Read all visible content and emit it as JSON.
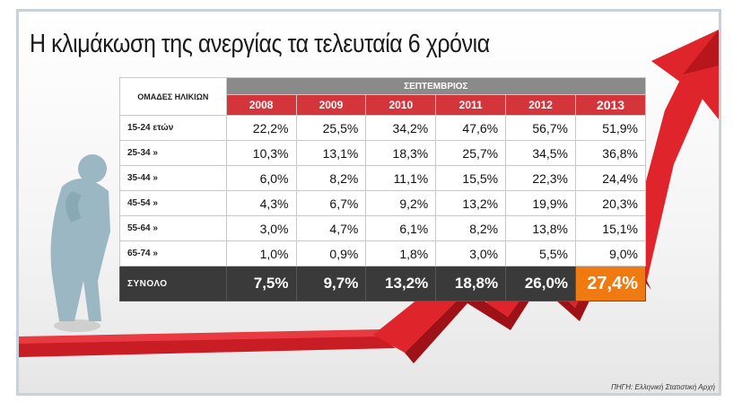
{
  "title": "Η κλιμάκωση της ανεργίας τα τελευταία 6 χρόνια",
  "source": "ΠΗΓΗ: Ελληνική Στατιστική Αρχή",
  "colors": {
    "header_red": "#d4353b",
    "highlight_orange": "#ef7a12",
    "total_dark": "#3a3a3a",
    "arrow_red": "#e0242c"
  },
  "chart_data": {
    "type": "table",
    "row_header_label": "ΟΜΑΔΕΣ ΗΛΙΚΙΩΝ",
    "column_group_label": "ΣΕΠΤΕΜΒΡΙΟΣ",
    "columns": [
      "2008",
      "2009",
      "2010",
      "2011",
      "2012",
      "2013"
    ],
    "rows": [
      {
        "label": "15-24 ετών",
        "values": [
          "22,2%",
          "25,5%",
          "34,2%",
          "47,6%",
          "56,7%",
          "51,9%"
        ]
      },
      {
        "label": "25-34  »",
        "values": [
          "10,3%",
          "13,1%",
          "18,3%",
          "25,7%",
          "34,5%",
          "36,8%"
        ]
      },
      {
        "label": "35-44  »",
        "values": [
          "6,0%",
          "8,2%",
          "11,1%",
          "15,5%",
          "22,3%",
          "24,4%"
        ]
      },
      {
        "label": "45-54  »",
        "values": [
          "4,3%",
          "6,7%",
          "9,2%",
          "13,2%",
          "19,9%",
          "20,3%"
        ]
      },
      {
        "label": "55-64  »",
        "values": [
          "3,0%",
          "4,7%",
          "6,1%",
          "8,2%",
          "13,8%",
          "15,1%"
        ]
      },
      {
        "label": "65-74  »",
        "values": [
          "1,0%",
          "0,9%",
          "1,8%",
          "3,0%",
          "5,5%",
          "9,0%"
        ]
      }
    ],
    "total": {
      "label": "ΣΥΝΟΛΟ",
      "values": [
        "7,5%",
        "9,7%",
        "13,2%",
        "18,8%",
        "26,0%",
        "27,4%"
      ]
    }
  }
}
